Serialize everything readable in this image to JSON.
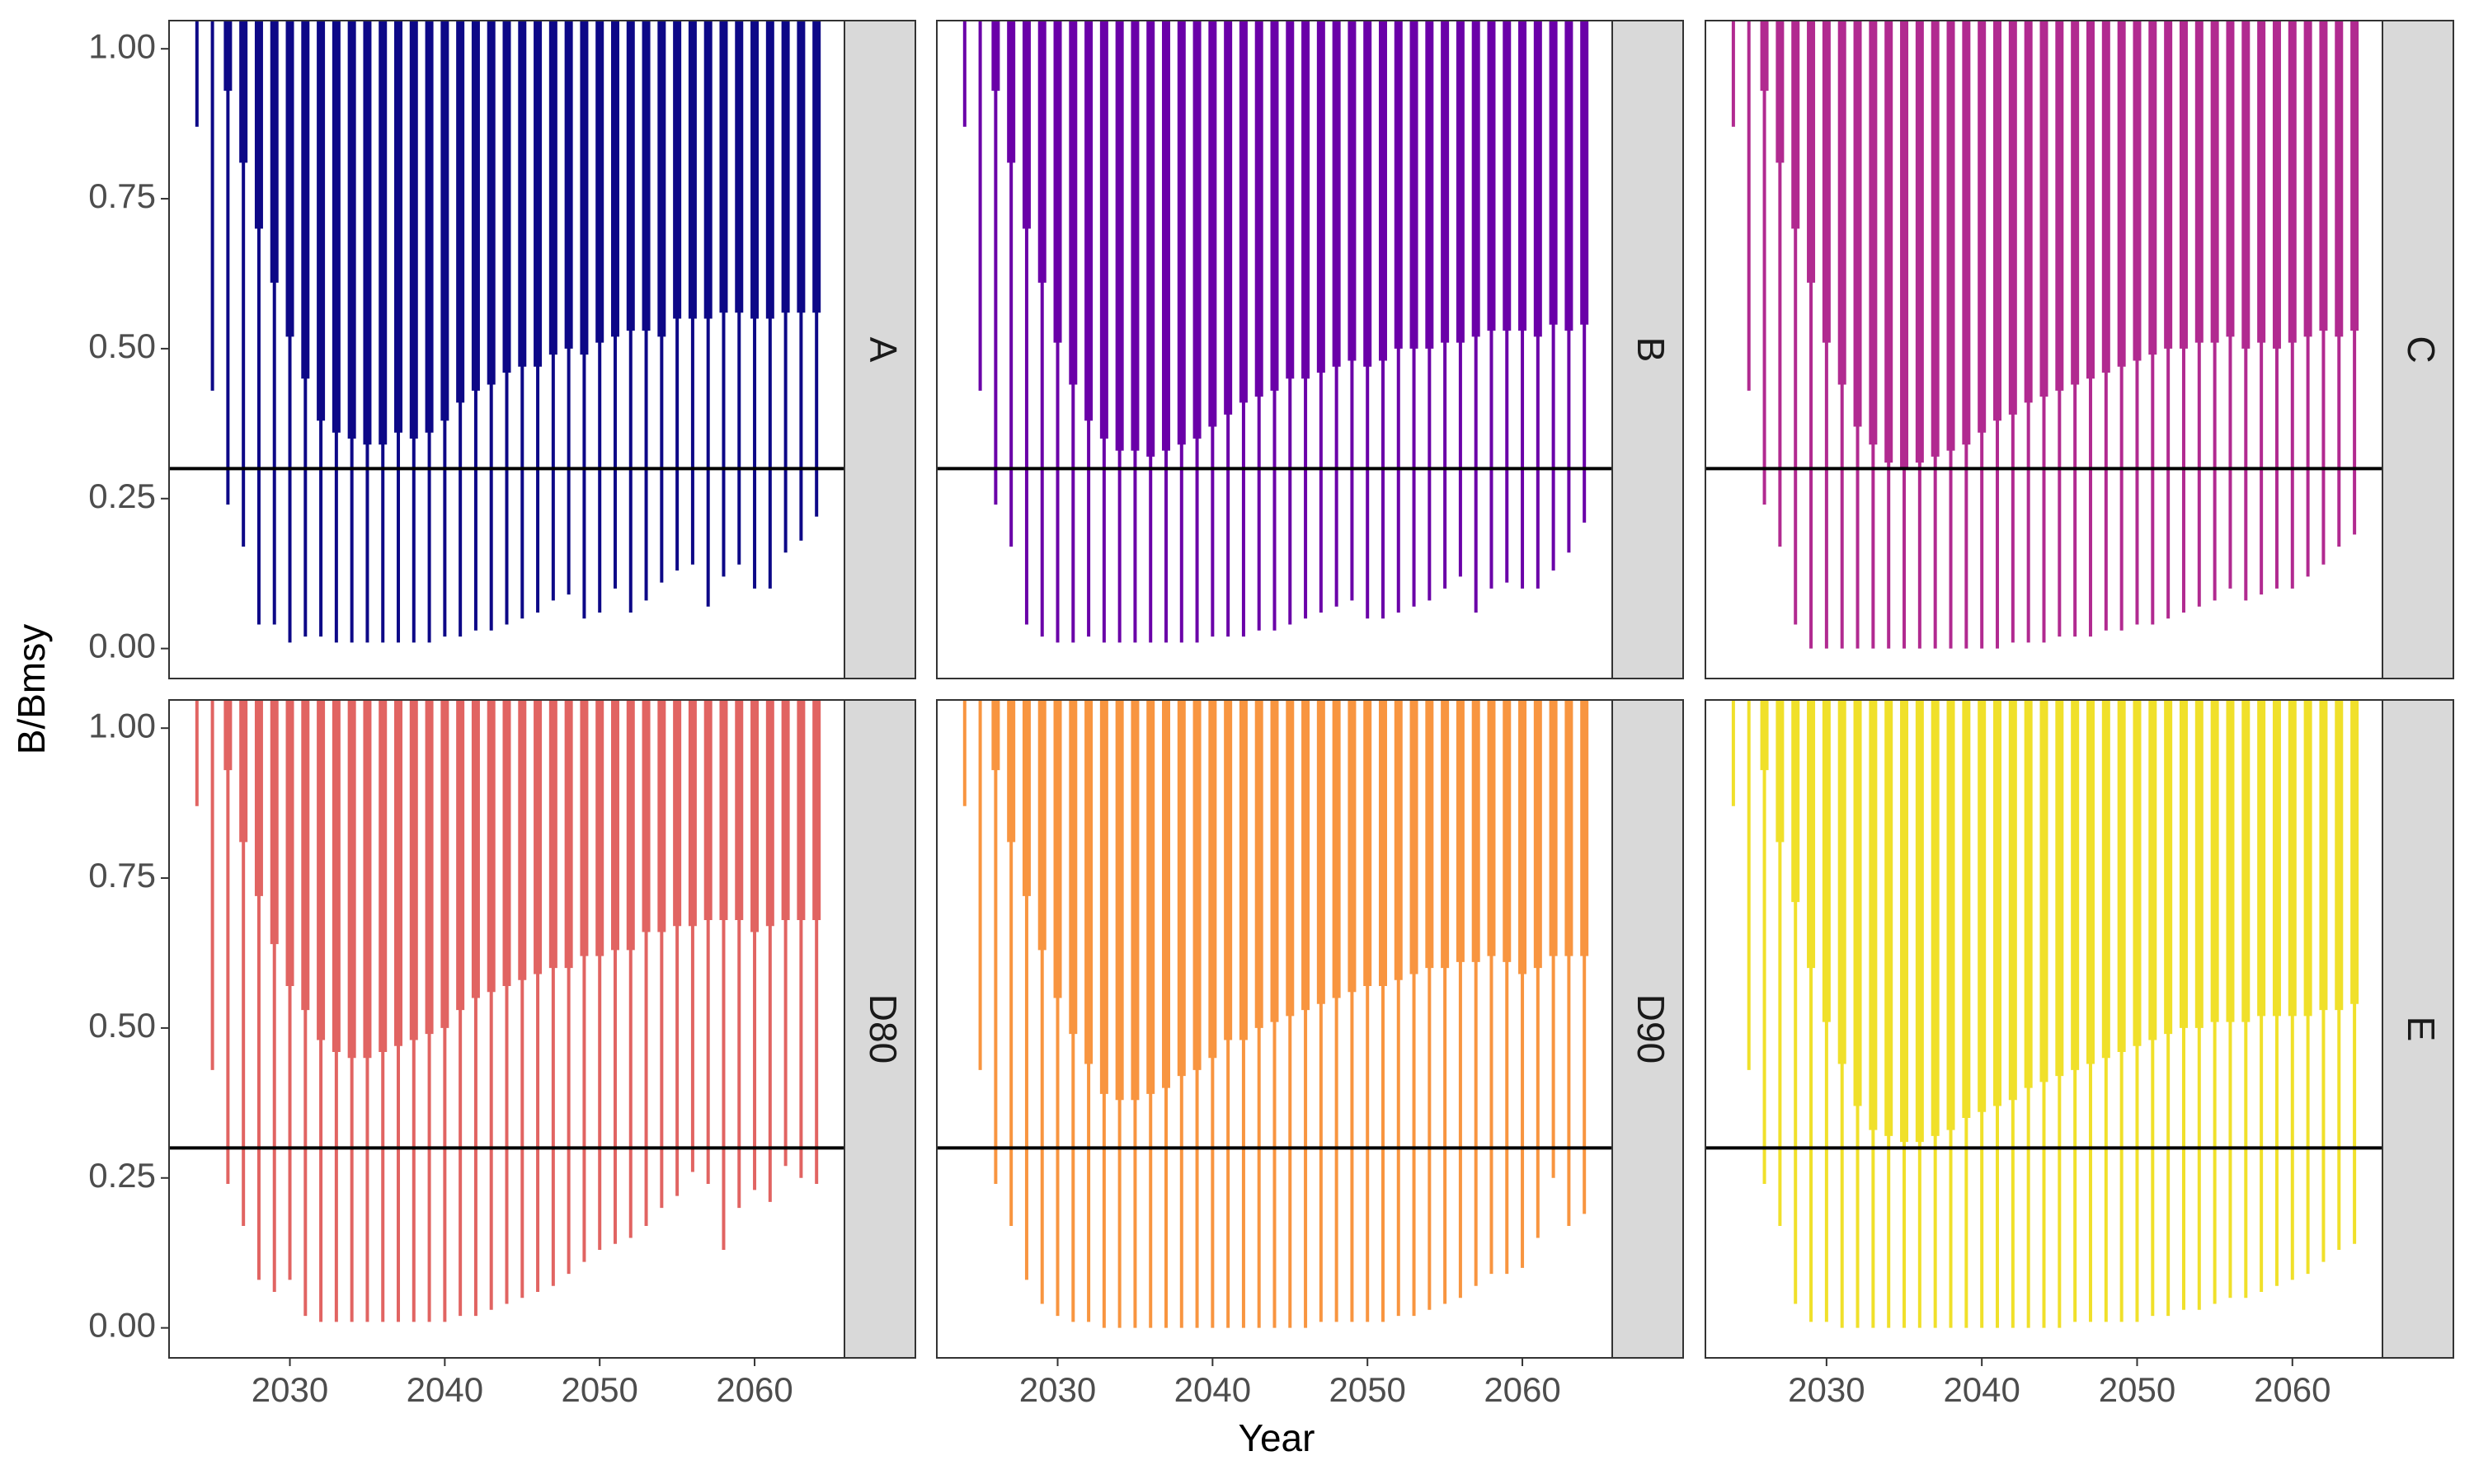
{
  "chart_data": {
    "type": "facet_range",
    "x_label": "Year",
    "y_label": "B/Bmsy",
    "x": [
      2024,
      2025,
      2026,
      2027,
      2028,
      2029,
      2030,
      2031,
      2032,
      2033,
      2034,
      2035,
      2036,
      2037,
      2038,
      2039,
      2040,
      2041,
      2042,
      2043,
      2044,
      2045,
      2046,
      2047,
      2048,
      2049,
      2050,
      2051,
      2052,
      2053,
      2054,
      2055,
      2056,
      2057,
      2058,
      2059,
      2060,
      2061,
      2062,
      2063,
      2064
    ],
    "xlim": [
      2022.2,
      2065.8
    ],
    "xticks": [
      2030,
      2040,
      2050,
      2060
    ],
    "ylim": [
      -0.05,
      1.047
    ],
    "yticks": [
      {
        "value": 0,
        "label": "0.00"
      },
      {
        "value": 0.25,
        "label": "0.25"
      },
      {
        "value": 0.5,
        "label": "0.50"
      },
      {
        "value": 0.75,
        "label": "0.75"
      },
      {
        "value": 1,
        "label": "1.00"
      }
    ],
    "hline": 0.3,
    "panels": [
      {
        "name": "A",
        "color": "#0d0887",
        "low": [
          0.87,
          0.43,
          0.24,
          0.17,
          0.04,
          0.04,
          0.01,
          0.02,
          0.02,
          0.01,
          0.01,
          0.01,
          0.01,
          0.01,
          0.01,
          0.01,
          0.02,
          0.02,
          0.03,
          0.03,
          0.04,
          0.05,
          0.06,
          0.08,
          0.09,
          0.05,
          0.06,
          0.1,
          0.06,
          0.08,
          0.11,
          0.13,
          0.14,
          0.07,
          0.12,
          0.14,
          0.1,
          0.1,
          0.16,
          0.18,
          0.22
        ],
        "q_low": [
          null,
          null,
          0.93,
          0.81,
          0.7,
          0.61,
          0.52,
          0.45,
          0.38,
          0.36,
          0.35,
          0.34,
          0.34,
          0.36,
          0.35,
          0.36,
          0.38,
          0.41,
          0.43,
          0.44,
          0.46,
          0.47,
          0.47,
          0.49,
          0.5,
          0.49,
          0.51,
          0.52,
          0.53,
          0.53,
          0.52,
          0.55,
          0.55,
          0.55,
          0.56,
          0.56,
          0.55,
          0.55,
          0.56,
          0.56,
          0.56
        ],
        "q_high": [
          null,
          null,
          1.05,
          1.05,
          1.05,
          1.05,
          1.05,
          1.05,
          1.05,
          1.05,
          1.05,
          1.05,
          1.05,
          1.05,
          1.05,
          1.05,
          1.05,
          1.05,
          1.05,
          1.05,
          1.05,
          1.05,
          1.05,
          1.05,
          1.05,
          1.05,
          1.05,
          1.05,
          1.05,
          1.05,
          1.05,
          1.05,
          1.05,
          1.05,
          1.05,
          1.05,
          1.05,
          1.05,
          1.05,
          1.05,
          1.05
        ],
        "high": [
          1.05,
          1.05,
          1.05,
          1.05,
          1.05,
          1.05,
          1.05,
          1.05,
          1.05,
          1.05,
          1.05,
          1.05,
          1.05,
          1.05,
          1.05,
          1.05,
          1.05,
          1.05,
          1.05,
          1.05,
          1.05,
          1.05,
          1.05,
          1.05,
          1.05,
          1.05,
          1.05,
          1.05,
          1.05,
          1.05,
          1.05,
          1.05,
          1.05,
          1.05,
          1.05,
          1.05,
          1.05,
          1.05,
          1.05,
          1.05,
          1.05
        ]
      },
      {
        "name": "B",
        "color": "#6a00a8",
        "low": [
          0.87,
          0.43,
          0.24,
          0.17,
          0.04,
          0.02,
          0.01,
          0.01,
          0.02,
          0.01,
          0.01,
          0.01,
          0.01,
          0.01,
          0.01,
          0.01,
          0.02,
          0.02,
          0.02,
          0.03,
          0.03,
          0.04,
          0.05,
          0.06,
          0.07,
          0.08,
          0.05,
          0.05,
          0.06,
          0.07,
          0.08,
          0.1,
          0.12,
          0.06,
          0.1,
          0.11,
          0.1,
          0.1,
          0.13,
          0.16,
          0.21
        ],
        "q_low": [
          null,
          null,
          0.93,
          0.81,
          0.7,
          0.61,
          0.51,
          0.44,
          0.38,
          0.35,
          0.33,
          0.33,
          0.32,
          0.33,
          0.34,
          0.35,
          0.37,
          0.39,
          0.41,
          0.42,
          0.43,
          0.45,
          0.45,
          0.46,
          0.47,
          0.48,
          0.47,
          0.48,
          0.5,
          0.5,
          0.5,
          0.51,
          0.51,
          0.52,
          0.53,
          0.53,
          0.53,
          0.52,
          0.54,
          0.53,
          0.54
        ],
        "q_high": [
          null,
          null,
          1.05,
          1.05,
          1.05,
          1.05,
          1.05,
          1.05,
          1.05,
          1.05,
          1.05,
          1.05,
          1.05,
          1.05,
          1.05,
          1.05,
          1.05,
          1.05,
          1.05,
          1.05,
          1.05,
          1.05,
          1.05,
          1.05,
          1.05,
          1.05,
          1.05,
          1.05,
          1.05,
          1.05,
          1.05,
          1.05,
          1.05,
          1.05,
          1.05,
          1.05,
          1.05,
          1.05,
          1.05,
          1.05,
          1.05
        ],
        "high": [
          1.05,
          1.05,
          1.05,
          1.05,
          1.05,
          1.05,
          1.05,
          1.05,
          1.05,
          1.05,
          1.05,
          1.05,
          1.05,
          1.05,
          1.05,
          1.05,
          1.05,
          1.05,
          1.05,
          1.05,
          1.05,
          1.05,
          1.05,
          1.05,
          1.05,
          1.05,
          1.05,
          1.05,
          1.05,
          1.05,
          1.05,
          1.05,
          1.05,
          1.05,
          1.05,
          1.05,
          1.05,
          1.05,
          1.05,
          1.05,
          1.05
        ]
      },
      {
        "name": "C",
        "color": "#b12a90",
        "low": [
          0.87,
          0.43,
          0.24,
          0.17,
          0.04,
          0.0,
          0.0,
          0.0,
          0.0,
          0.0,
          0.0,
          0.0,
          0.0,
          0.0,
          0.0,
          0.0,
          0.0,
          0.0,
          0.01,
          0.01,
          0.01,
          0.02,
          0.02,
          0.02,
          0.03,
          0.03,
          0.04,
          0.04,
          0.05,
          0.06,
          0.07,
          0.08,
          0.1,
          0.08,
          0.09,
          0.1,
          0.1,
          0.12,
          0.14,
          0.17,
          0.19
        ],
        "q_low": [
          null,
          null,
          0.93,
          0.81,
          0.7,
          0.61,
          0.51,
          0.44,
          0.37,
          0.34,
          0.31,
          0.3,
          0.31,
          0.32,
          0.33,
          0.34,
          0.36,
          0.38,
          0.39,
          0.41,
          0.42,
          0.43,
          0.44,
          0.45,
          0.46,
          0.47,
          0.48,
          0.49,
          0.5,
          0.5,
          0.51,
          0.51,
          0.52,
          0.5,
          0.51,
          0.5,
          0.51,
          0.52,
          0.53,
          0.52,
          0.53
        ],
        "q_high": [
          null,
          null,
          1.05,
          1.05,
          1.05,
          1.05,
          1.05,
          1.05,
          1.05,
          1.05,
          1.05,
          1.05,
          1.05,
          1.05,
          1.05,
          1.05,
          1.05,
          1.05,
          1.05,
          1.05,
          1.05,
          1.05,
          1.05,
          1.05,
          1.05,
          1.05,
          1.05,
          1.05,
          1.05,
          1.05,
          1.05,
          1.05,
          1.05,
          1.05,
          1.05,
          1.05,
          1.05,
          1.05,
          1.05,
          1.05,
          1.05
        ],
        "high": [
          1.05,
          1.05,
          1.05,
          1.05,
          1.05,
          1.05,
          1.05,
          1.05,
          1.05,
          1.05,
          1.05,
          1.05,
          1.05,
          1.05,
          1.05,
          1.05,
          1.05,
          1.05,
          1.05,
          1.05,
          1.05,
          1.05,
          1.05,
          1.05,
          1.05,
          1.05,
          1.05,
          1.05,
          1.05,
          1.05,
          1.05,
          1.05,
          1.05,
          1.05,
          1.05,
          1.05,
          1.05,
          1.05,
          1.05,
          1.05,
          1.05
        ]
      },
      {
        "name": "D80",
        "color": "#e16462",
        "low": [
          0.87,
          0.43,
          0.24,
          0.17,
          0.08,
          0.06,
          0.08,
          0.02,
          0.01,
          0.01,
          0.01,
          0.01,
          0.01,
          0.01,
          0.01,
          0.01,
          0.01,
          0.02,
          0.02,
          0.03,
          0.04,
          0.05,
          0.06,
          0.07,
          0.09,
          0.11,
          0.13,
          0.14,
          0.15,
          0.17,
          0.2,
          0.22,
          0.26,
          0.24,
          0.13,
          0.2,
          0.23,
          0.21,
          0.27,
          0.25,
          0.24
        ],
        "q_low": [
          null,
          null,
          0.93,
          0.81,
          0.72,
          0.64,
          0.57,
          0.53,
          0.48,
          0.46,
          0.45,
          0.45,
          0.46,
          0.47,
          0.48,
          0.49,
          0.5,
          0.53,
          0.55,
          0.56,
          0.57,
          0.58,
          0.59,
          0.6,
          0.6,
          0.62,
          0.62,
          0.63,
          0.63,
          0.66,
          0.66,
          0.67,
          0.67,
          0.68,
          0.68,
          0.68,
          0.66,
          0.67,
          0.68,
          0.68,
          0.68
        ],
        "q_high": [
          null,
          null,
          1.05,
          1.05,
          1.05,
          1.05,
          1.05,
          1.05,
          1.05,
          1.05,
          1.05,
          1.05,
          1.05,
          1.05,
          1.05,
          1.05,
          1.05,
          1.05,
          1.05,
          1.05,
          1.05,
          1.05,
          1.05,
          1.05,
          1.05,
          1.05,
          1.05,
          1.05,
          1.05,
          1.05,
          1.05,
          1.05,
          1.05,
          1.05,
          1.05,
          1.05,
          1.05,
          1.05,
          1.05,
          1.05,
          1.05
        ],
        "high": [
          1.05,
          1.05,
          1.05,
          1.05,
          1.05,
          1.05,
          1.05,
          1.05,
          1.05,
          1.05,
          1.05,
          1.05,
          1.05,
          1.05,
          1.05,
          1.05,
          1.05,
          1.05,
          1.05,
          1.05,
          1.05,
          1.05,
          1.05,
          1.05,
          1.05,
          1.05,
          1.05,
          1.05,
          1.05,
          1.05,
          1.05,
          1.05,
          1.05,
          1.05,
          1.05,
          1.05,
          1.05,
          1.05,
          1.05,
          1.05,
          1.05
        ]
      },
      {
        "name": "D90",
        "color": "#f89540",
        "low": [
          0.87,
          0.43,
          0.24,
          0.17,
          0.08,
          0.04,
          0.02,
          0.01,
          0.01,
          0.0,
          0.0,
          0.0,
          0.0,
          0.0,
          0.0,
          0.0,
          0.0,
          0.0,
          0.0,
          0.0,
          0.0,
          0.0,
          0.0,
          0.01,
          0.01,
          0.01,
          0.01,
          0.01,
          0.02,
          0.02,
          0.03,
          0.04,
          0.05,
          0.07,
          0.09,
          0.09,
          0.1,
          0.15,
          0.25,
          0.17,
          0.19
        ],
        "q_low": [
          null,
          null,
          0.93,
          0.81,
          0.72,
          0.63,
          0.55,
          0.49,
          0.44,
          0.39,
          0.38,
          0.38,
          0.39,
          0.4,
          0.42,
          0.43,
          0.45,
          0.48,
          0.48,
          0.5,
          0.51,
          0.52,
          0.53,
          0.54,
          0.55,
          0.56,
          0.57,
          0.57,
          0.58,
          0.59,
          0.6,
          0.6,
          0.61,
          0.61,
          0.62,
          0.61,
          0.59,
          0.6,
          0.62,
          0.62,
          0.62
        ],
        "q_high": [
          null,
          null,
          1.05,
          1.05,
          1.05,
          1.05,
          1.05,
          1.05,
          1.05,
          1.05,
          1.05,
          1.05,
          1.05,
          1.05,
          1.05,
          1.05,
          1.05,
          1.05,
          1.05,
          1.05,
          1.05,
          1.05,
          1.05,
          1.05,
          1.05,
          1.05,
          1.05,
          1.05,
          1.05,
          1.05,
          1.05,
          1.05,
          1.05,
          1.05,
          1.05,
          1.05,
          1.05,
          1.05,
          1.05,
          1.05,
          1.05
        ],
        "high": [
          1.05,
          1.05,
          1.05,
          1.05,
          1.05,
          1.05,
          1.05,
          1.05,
          1.05,
          1.05,
          1.05,
          1.05,
          1.05,
          1.05,
          1.05,
          1.05,
          1.05,
          1.05,
          1.05,
          1.05,
          1.05,
          1.05,
          1.05,
          1.05,
          1.05,
          1.05,
          1.05,
          1.05,
          1.05,
          1.05,
          1.05,
          1.05,
          1.05,
          1.05,
          1.05,
          1.05,
          1.05,
          1.05,
          1.05,
          1.05,
          1.05
        ]
      },
      {
        "name": "E",
        "color": "#f0e02a",
        "low": [
          0.87,
          0.43,
          0.24,
          0.17,
          0.04,
          0.01,
          0.01,
          0.0,
          0.0,
          0.0,
          0.0,
          0.0,
          0.0,
          0.0,
          0.0,
          0.0,
          0.0,
          0.0,
          0.0,
          0.0,
          0.0,
          0.0,
          0.01,
          0.01,
          0.01,
          0.01,
          0.01,
          0.02,
          0.02,
          0.03,
          0.03,
          0.04,
          0.05,
          0.05,
          0.06,
          0.07,
          0.08,
          0.09,
          0.11,
          0.13,
          0.14
        ],
        "q_low": [
          null,
          null,
          0.93,
          0.81,
          0.71,
          0.6,
          0.51,
          0.44,
          0.37,
          0.33,
          0.32,
          0.31,
          0.31,
          0.32,
          0.33,
          0.35,
          0.36,
          0.37,
          0.38,
          0.4,
          0.41,
          0.42,
          0.43,
          0.44,
          0.45,
          0.46,
          0.47,
          0.48,
          0.49,
          0.5,
          0.5,
          0.51,
          0.51,
          0.51,
          0.52,
          0.52,
          0.52,
          0.52,
          0.53,
          0.53,
          0.54
        ],
        "q_high": [
          null,
          null,
          1.05,
          1.05,
          1.05,
          1.05,
          1.05,
          1.05,
          1.05,
          1.05,
          1.05,
          1.05,
          1.05,
          1.05,
          1.05,
          1.05,
          1.05,
          1.05,
          1.05,
          1.05,
          1.05,
          1.05,
          1.05,
          1.05,
          1.05,
          1.05,
          1.05,
          1.05,
          1.05,
          1.05,
          1.05,
          1.05,
          1.05,
          1.05,
          1.05,
          1.05,
          1.05,
          1.05,
          1.05,
          1.05,
          1.05
        ],
        "high": [
          1.05,
          1.05,
          1.05,
          1.05,
          1.05,
          1.05,
          1.05,
          1.05,
          1.05,
          1.05,
          1.05,
          1.05,
          1.05,
          1.05,
          1.05,
          1.05,
          1.05,
          1.05,
          1.05,
          1.05,
          1.05,
          1.05,
          1.05,
          1.05,
          1.05,
          1.05,
          1.05,
          1.05,
          1.05,
          1.05,
          1.05,
          1.05,
          1.05,
          1.05,
          1.05,
          1.05,
          1.05,
          1.05,
          1.05,
          1.05,
          1.05
        ]
      }
    ]
  }
}
